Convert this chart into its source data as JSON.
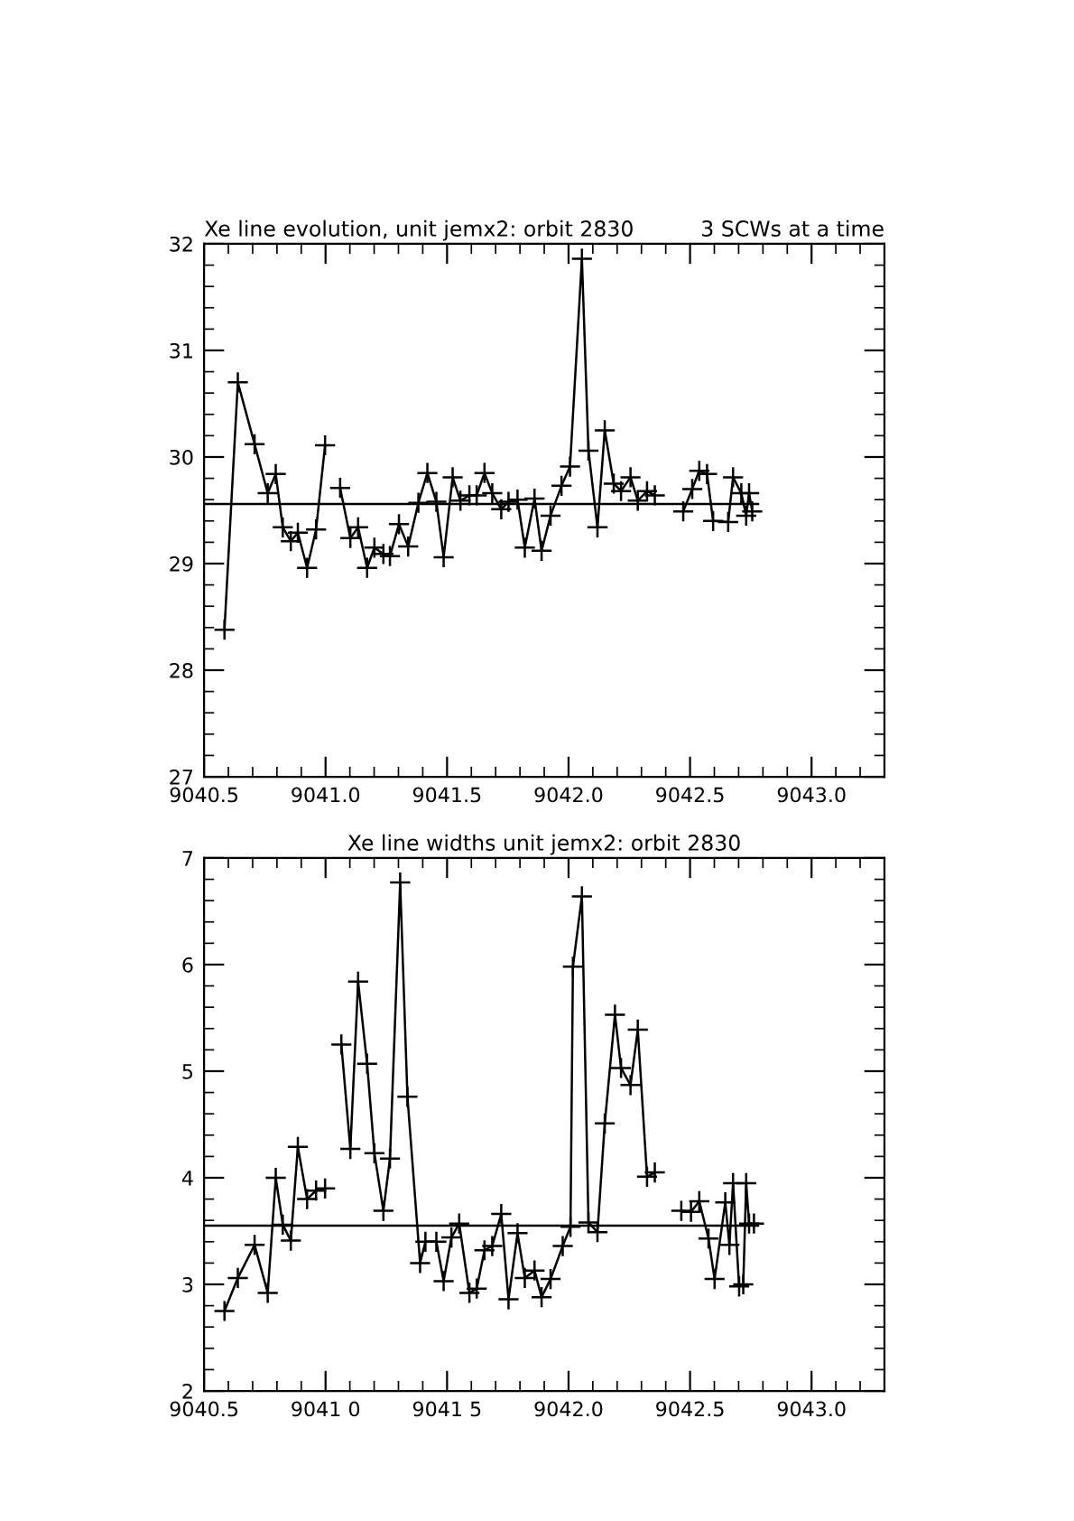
{
  "chart_data": [
    {
      "type": "line",
      "title": "Xe line evolution, unit jemx2: orbit 2830",
      "subtitle": "3 SCWs at a time",
      "xlim": [
        9040.5,
        9043.3
      ],
      "xticks": [
        9040.5,
        {
          "value": 9041,
          "label": "9041.0"
        },
        9041.5,
        {
          "value": 9042,
          "label": "9042.0"
        },
        9042.5,
        {
          "value": 9043,
          "label": "9043.0"
        }
      ],
      "ylim": [
        27,
        32
      ],
      "yticks": [
        27,
        28,
        29,
        30,
        31,
        32
      ],
      "grid": false,
      "legend": false,
      "marker": "cross",
      "line_style": "solid",
      "series": [
        {
          "color": "#000000",
          "x": [
            9040.584,
            9040.639,
            9040.708,
            9040.762,
            9040.795,
            9040.824,
            9040.857,
            9040.886,
            9040.924,
            9040.961,
            9040.998,
            9041.03,
            9041.06,
            9041.102,
            9041.134,
            9041.171,
            9041.201,
            9041.238,
            9041.265,
            9041.302,
            9041.34,
            9041.382,
            9041.419,
            9041.456,
            9041.486,
            9041.523,
            9041.555,
            9041.592,
            9041.622,
            9041.654,
            9041.686,
            9041.723,
            9041.753,
            9041.79,
            9041.82,
            9041.86,
            9041.889,
            9041.926,
            9041.971,
            9042.006,
            9042.055,
            9042.082,
            9042.119,
            9042.149,
            9042.186,
            9042.216,
            9042.255,
            9042.285,
            9042.323,
            9042.355,
            9042.39,
            9042.43,
            9042.472,
            9042.509,
            9042.538,
            9042.57,
            9042.595,
            9042.657,
            9042.677,
            9042.711,
            9042.731,
            9042.743,
            9042.756
          ],
          "values": [
            28.38,
            30.7,
            30.12,
            29.66,
            29.84,
            29.34,
            29.21,
            29.29,
            28.96,
            29.32,
            30.11,
            null,
            29.71,
            29.24,
            29.34,
            28.96,
            29.15,
            29.09,
            29.07,
            29.37,
            29.16,
            29.57,
            29.85,
            29.58,
            29.06,
            29.81,
            29.59,
            29.64,
            29.64,
            29.85,
            29.66,
            29.51,
            29.58,
            29.6,
            29.15,
            29.61,
            29.12,
            29.45,
            29.73,
            29.91,
            31.86,
            30.06,
            29.34,
            30.25,
            29.75,
            29.68,
            29.81,
            29.59,
            29.68,
            29.64,
            null,
            null,
            29.49,
            29.7,
            29.87,
            29.84,
            29.4,
            29.39,
            29.81,
            29.66,
            29.45,
            29.66,
            29.49
          ]
        },
        {
          "color": "#000000",
          "marker": "none",
          "x": [
            9040.5,
            9042.78
          ],
          "values": [
            29.56,
            29.56
          ]
        }
      ]
    },
    {
      "type": "line",
      "title": "Xe line widths unit jemx2: orbit 2830",
      "xlim": [
        9040.5,
        9043.3
      ],
      "xticks": [
        9040.5,
        {
          "value": 9041.0,
          "label": "9041 0"
        },
        {
          "value": 9041.5,
          "label": "9041 5"
        },
        {
          "value": 9042,
          "label": "9042.0"
        },
        9042.5,
        {
          "value": 9043,
          "label": "9043.0"
        }
      ],
      "ylim": [
        2,
        7
      ],
      "yticks": [
        2,
        3,
        4,
        5,
        6,
        7
      ],
      "grid": false,
      "legend": false,
      "marker": "cross",
      "line_style": "solid",
      "series": [
        {
          "color": "#000000",
          "x": [
            9040.584,
            9040.639,
            9040.708,
            9040.762,
            9040.795,
            9040.824,
            9040.857,
            9040.886,
            9040.924,
            9040.961,
            9040.998,
            9041.03,
            9041.065,
            9041.102,
            9041.134,
            9041.171,
            9041.201,
            9041.238,
            9041.265,
            9041.307,
            9041.337,
            9041.389,
            9041.411,
            9041.456,
            9041.486,
            9041.518,
            9041.55,
            9041.592,
            9041.622,
            9041.654,
            9041.686,
            9041.723,
            9041.753,
            9041.79,
            9041.82,
            9041.86,
            9041.889,
            9041.926,
            9041.976,
            9042.008,
            9042.018,
            9042.055,
            9042.082,
            9042.119,
            9042.149,
            9042.191,
            9042.216,
            9042.255,
            9042.285,
            9042.323,
            9042.355,
            9042.4,
            9042.464,
            9042.504,
            9042.538,
            9042.576,
            9042.601,
            9042.645,
            9042.662,
            9042.677,
            9042.702,
            9042.719,
            9042.731,
            9042.743,
            9042.763
          ],
          "values": [
            2.75,
            3.06,
            3.37,
            2.92,
            4.0,
            3.56,
            3.41,
            4.29,
            3.8,
            3.88,
            3.9,
            null,
            5.25,
            4.27,
            5.84,
            5.07,
            4.23,
            3.69,
            4.18,
            6.77,
            4.76,
            3.2,
            3.4,
            3.4,
            3.03,
            3.44,
            3.57,
            2.92,
            2.96,
            3.32,
            3.36,
            3.66,
            2.86,
            3.48,
            3.06,
            3.13,
            2.88,
            3.05,
            3.36,
            3.54,
            5.98,
            6.64,
            3.58,
            3.49,
            4.51,
            5.53,
            5.03,
            4.87,
            5.39,
            4.01,
            4.05,
            null,
            3.69,
            3.68,
            3.78,
            3.43,
            3.05,
            3.77,
            3.37,
            3.95,
            2.98,
            3.0,
            3.95,
            3.57,
            3.57
          ]
        },
        {
          "color": "#000000",
          "marker": "none",
          "x": [
            9040.5,
            9042.78
          ],
          "values": [
            3.55,
            3.55
          ]
        }
      ]
    }
  ]
}
